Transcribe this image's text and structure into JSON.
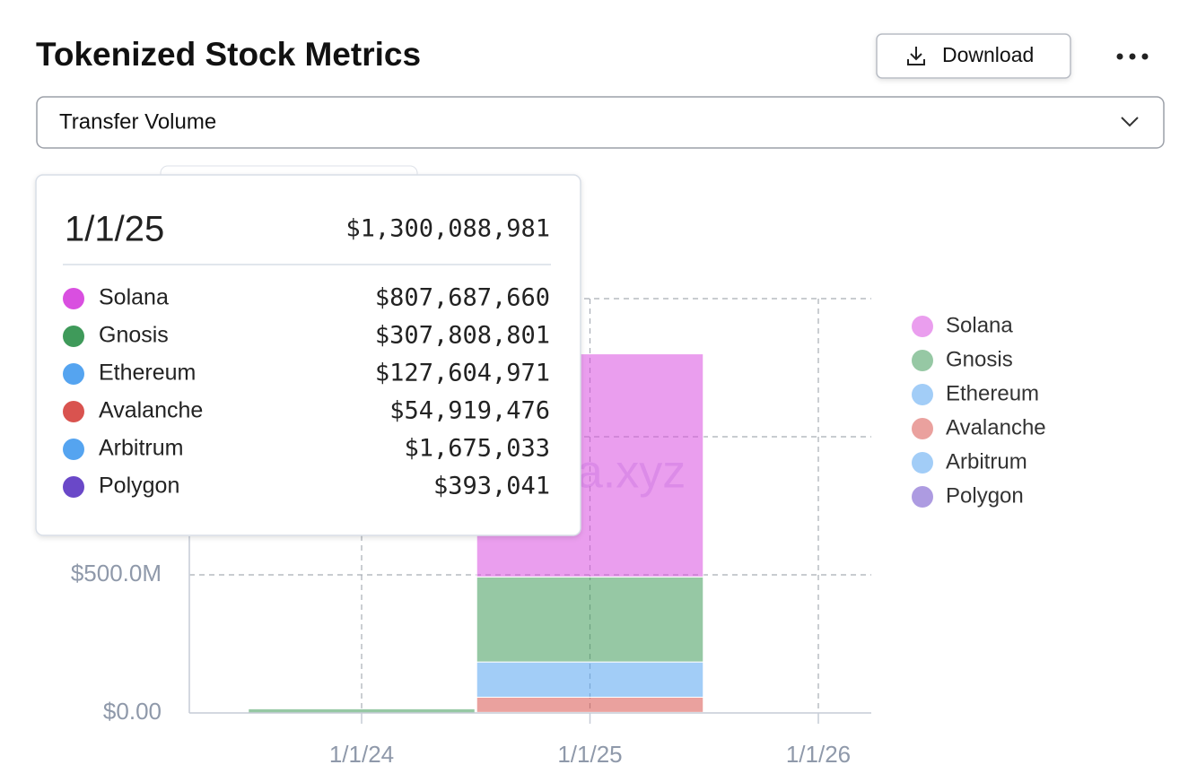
{
  "header": {
    "title": "Tokenized Stock Metrics",
    "download": "Download"
  },
  "dropdown": {
    "selected": "Transfer Volume"
  },
  "watermark": "rwa.xyz",
  "tooltip": {
    "total": "$1,300,088,981"
  },
  "chart_data": {
    "type": "stacked_bar",
    "categories": [
      "1/1/24",
      "1/1/25",
      "1/1/26"
    ],
    "series": [
      {
        "name": "Solana",
        "color": "#d94fe0",
        "values": [
          0,
          807687660,
          null
        ],
        "value_labels": [
          null,
          "$807,687,660",
          null
        ]
      },
      {
        "name": "Gnosis",
        "color": "#3f9a5a",
        "values": [
          15000000,
          307808801,
          null
        ],
        "value_labels": [
          null,
          "$307,808,801",
          null
        ]
      },
      {
        "name": "Ethereum",
        "color": "#55a4f0",
        "values": [
          0,
          127604971,
          null
        ],
        "value_labels": [
          null,
          "$127,604,971",
          null
        ]
      },
      {
        "name": "Avalanche",
        "color": "#d9534f",
        "values": [
          0,
          54919476,
          null
        ],
        "value_labels": [
          null,
          "$54,919,476",
          null
        ]
      },
      {
        "name": "Arbitrum",
        "color": "#55a4f0",
        "values": [
          0,
          1675033,
          null
        ],
        "value_labels": [
          null,
          "$1,675,033",
          null
        ]
      },
      {
        "name": "Polygon",
        "color": "#6a48c8",
        "values": [
          0,
          393041,
          null
        ],
        "value_labels": [
          null,
          "$393,041",
          null
        ]
      }
    ],
    "ylim": [
      0,
      1500000000
    ],
    "yticks": [
      {
        "value": 0,
        "label": "$0.00"
      },
      {
        "value": 500000000,
        "label": "$500.0M"
      }
    ],
    "ygrid": [
      500000000,
      1000000000,
      1500000000
    ],
    "grid": true,
    "legend": "right"
  }
}
